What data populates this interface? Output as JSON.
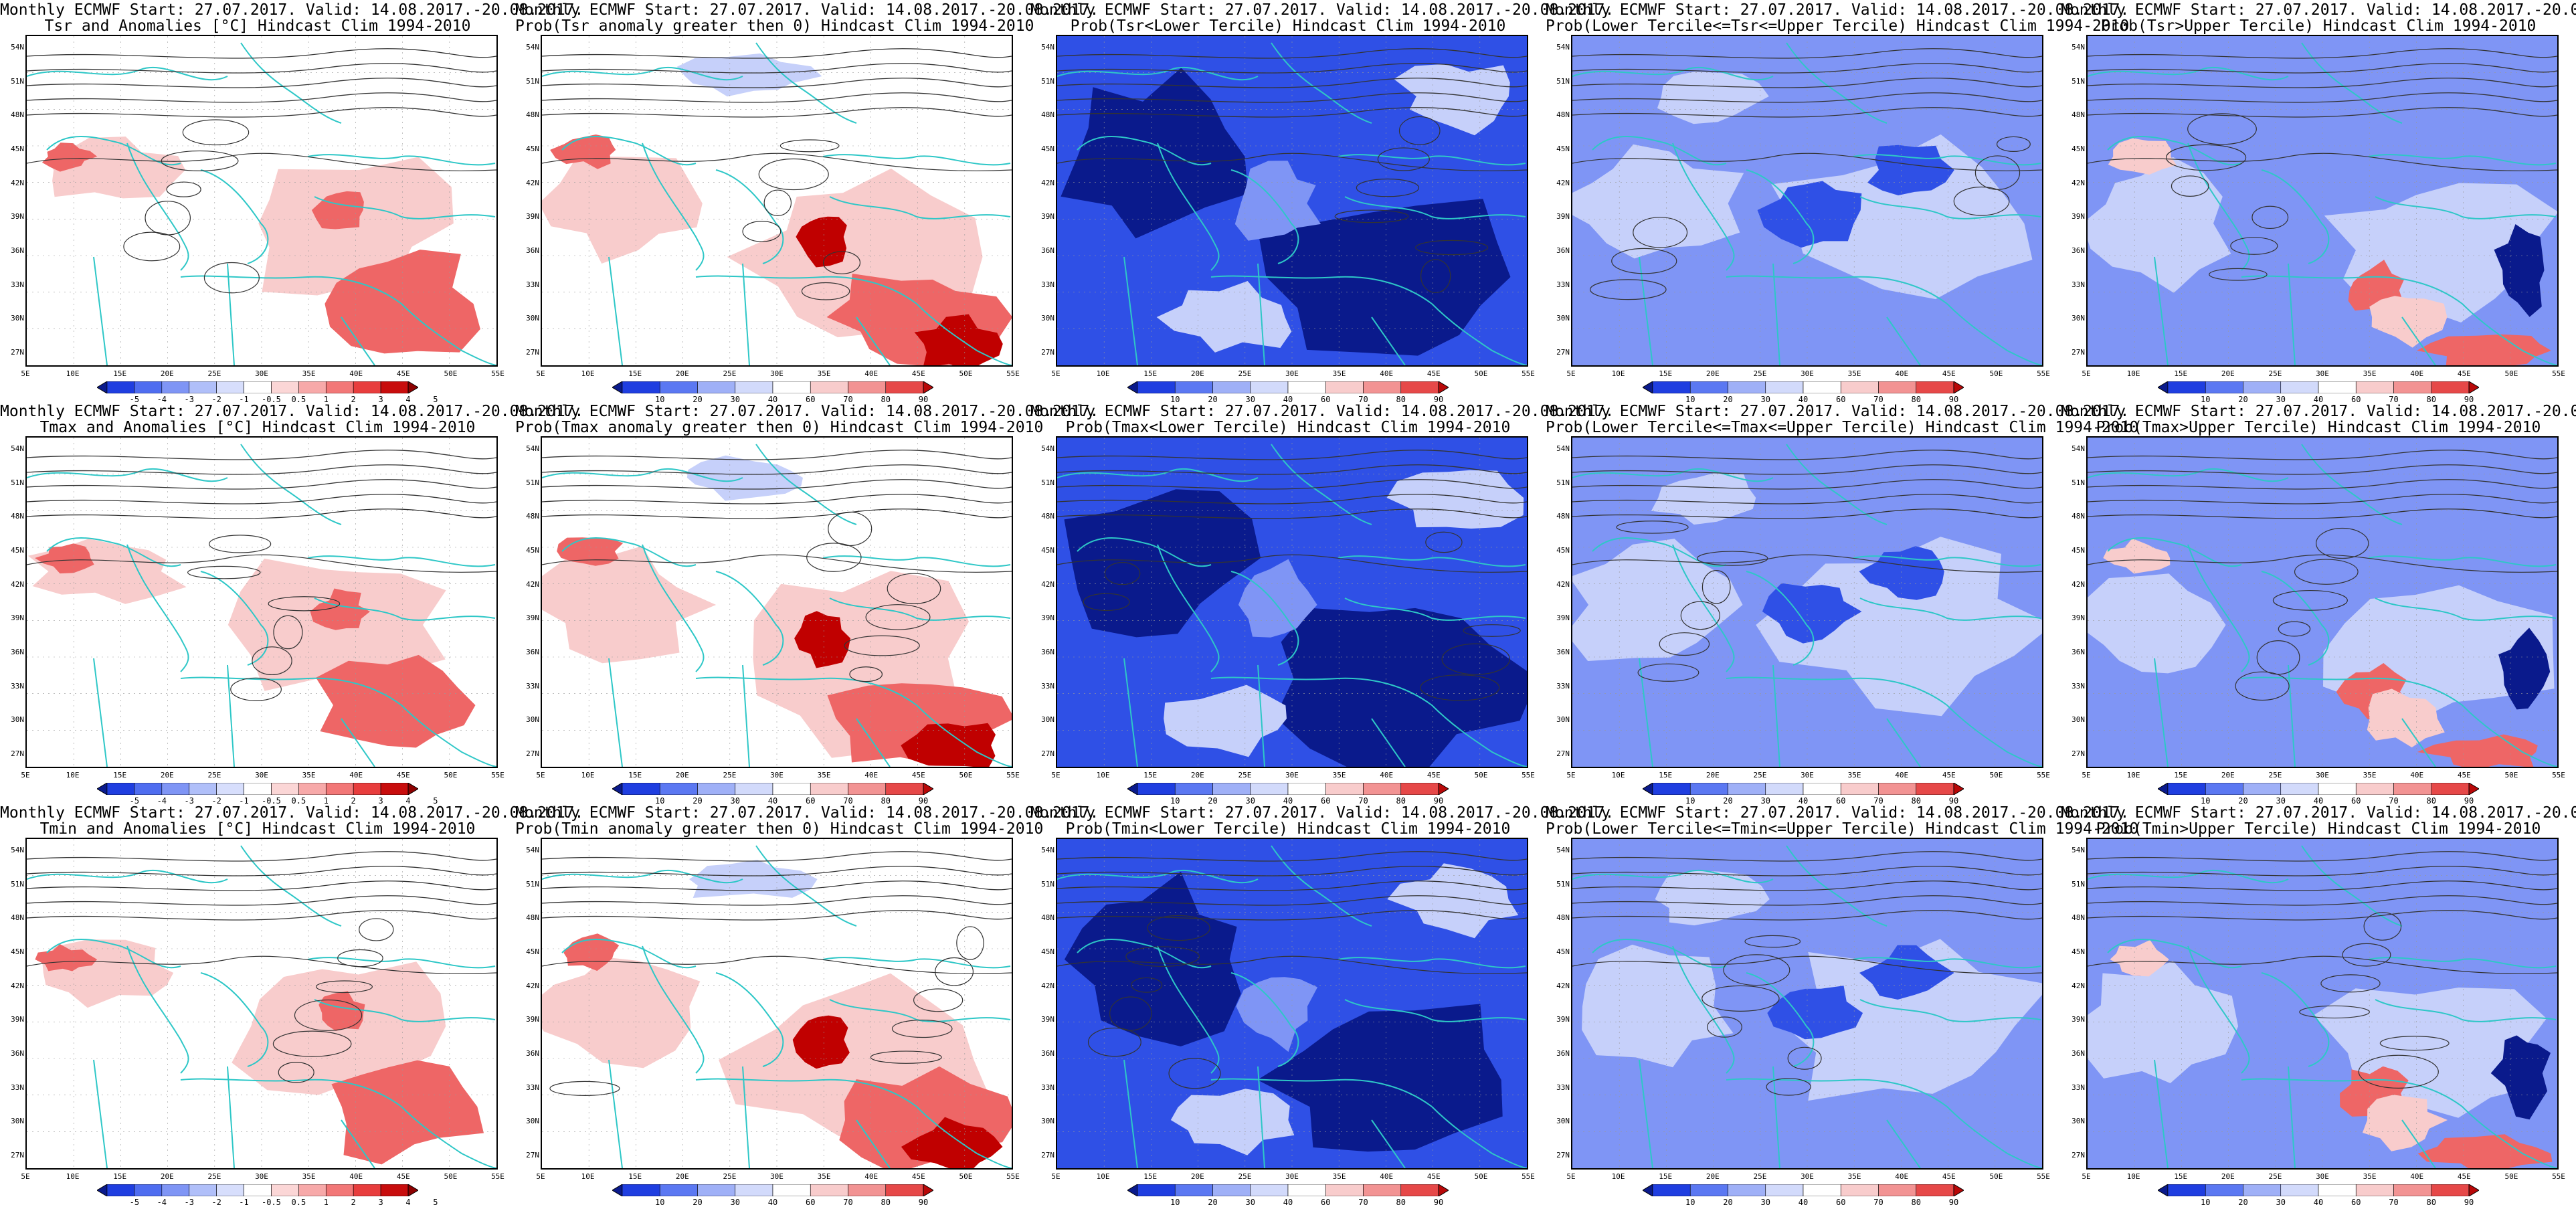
{
  "title_line1": "Monthly ECMWF Start: 27.07.2017. Valid: 14.08.2017.-20.08.2017.",
  "panels": [
    {
      "title": "Tsr and Anomalies [°C] Hindcast Clim 1994-2010",
      "kind": "anom",
      "colorbar": "anom"
    },
    {
      "title": "Prob(Tsr anomaly greater then 0) Hindcast Clim 1994-2010",
      "kind": "pos",
      "colorbar": "prob"
    },
    {
      "title": "Prob(Tsr<Lower Tercile) Hindcast Clim 1994-2010",
      "kind": "lower",
      "colorbar": "prob"
    },
    {
      "title": "Prob(Lower Tercile<=Tsr<=Upper Tercile) Hindcast Clim 1994-2010",
      "kind": "middle",
      "colorbar": "prob"
    },
    {
      "title": "Prob(Tsr>Upper Tercile) Hindcast Clim 1994-2010",
      "kind": "upper",
      "colorbar": "prob"
    },
    {
      "title": "Tmax and Anomalies [°C] Hindcast Clim 1994-2010",
      "kind": "anom",
      "colorbar": "anom"
    },
    {
      "title": "Prob(Tmax anomaly greater then 0) Hindcast Clim 1994-2010",
      "kind": "pos",
      "colorbar": "prob"
    },
    {
      "title": "Prob(Tmax<Lower Tercile) Hindcast Clim 1994-2010",
      "kind": "lower",
      "colorbar": "prob"
    },
    {
      "title": "Prob(Lower Tercile<=Tmax<=Upper Tercile) Hindcast Clim 1994-2010",
      "kind": "middle",
      "colorbar": "prob"
    },
    {
      "title": "Prob(Tmax>Upper Tercile) Hindcast Clim 1994-2010",
      "kind": "upper",
      "colorbar": "prob"
    },
    {
      "title": "Tmin and Anomalies [°C] Hindcast Clim 1994-2010",
      "kind": "anom",
      "colorbar": "anom"
    },
    {
      "title": "Prob(Tmin anomaly greater then 0) Hindcast Clim 1994-2010",
      "kind": "pos",
      "colorbar": "prob"
    },
    {
      "title": "Prob(Tmin<Lower Tercile) Hindcast Clim 1994-2010",
      "kind": "lower",
      "colorbar": "prob"
    },
    {
      "title": "Prob(Lower Tercile<=Tmin<=Upper Tercile) Hindcast Clim 1994-2010",
      "kind": "middle",
      "colorbar": "prob"
    },
    {
      "title": "Prob(Tmin>Upper Tercile) Hindcast Clim 1994-2010",
      "kind": "upper",
      "colorbar": "prob"
    }
  ],
  "lat_labels": [
    "54N",
    "51N",
    "48N",
    "45N",
    "42N",
    "39N",
    "36N",
    "33N",
    "30N",
    "27N"
  ],
  "lon_labels": [
    "5E",
    "10E",
    "15E",
    "20E",
    "25E",
    "30E",
    "35E",
    "40E",
    "45E",
    "50E",
    "55E"
  ],
  "colorbars": {
    "anom": {
      "labels": [
        "-5",
        "-4",
        "-3",
        "-2",
        "-1",
        "-0.5",
        "0.5",
        "1",
        "2",
        "3",
        "4",
        "5"
      ],
      "colors": [
        "#0a1a8c",
        "#1f3ee0",
        "#4f6df0",
        "#7f95f5",
        "#b0bff9",
        "#d7defc",
        "#ffffff",
        "#fbd6d6",
        "#f7a9a9",
        "#f27777",
        "#e83d3d",
        "#c80d0d",
        "#8c0000"
      ]
    },
    "prob": {
      "labels": [
        "10",
        "20",
        "30",
        "40",
        "60",
        "70",
        "80",
        "90"
      ],
      "colors": [
        "#0a1a8c",
        "#1f3ee0",
        "#5b78f2",
        "#9fb0f7",
        "#d2dafb",
        "#ffffff",
        "#f8cccc",
        "#f29393",
        "#e64848",
        "#b80808"
      ]
    }
  },
  "map_colors": {
    "land": "#ffffff",
    "coast": "#2ec7c7",
    "contour": "#333333",
    "dark_blue": "#0a1a8c",
    "blue": "#2f50e6",
    "mid_blue": "#7f95f5",
    "light_blue": "#c6d0fa",
    "pale_red": "#f8cccc",
    "red": "#ee6666",
    "dark_red": "#c00000"
  }
}
